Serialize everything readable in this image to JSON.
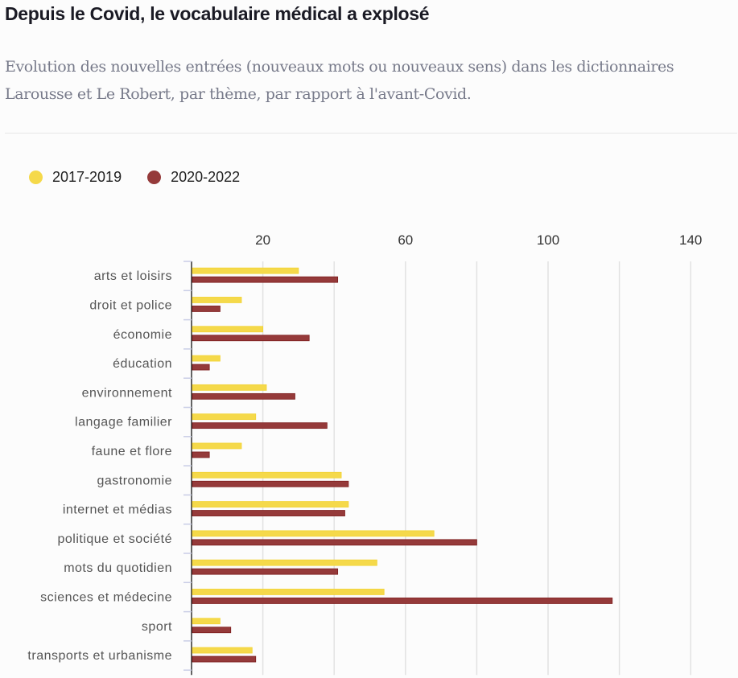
{
  "header": {
    "title": "Depuis le Covid, le vocabulaire médical a explosé",
    "subtitle": "Evolution des nouvelles entrées (nouveaux mots ou nouveaux sens) dans les dictionnaires Larousse et Le Robert, par thème, par rapport à l'avant-Covid."
  },
  "colors": {
    "series_2017": "#f5d94a",
    "series_2020": "#953a3a"
  },
  "chart_data": {
    "type": "bar",
    "orientation": "horizontal",
    "title": "Depuis le Covid, le vocabulaire médical a explosé",
    "xlabel": "",
    "ylabel": "",
    "xlim": [
      0,
      150
    ],
    "x_ticks": [
      20,
      40,
      60,
      80,
      100,
      120,
      140
    ],
    "x_tick_labels": [
      "20",
      "60",
      "100",
      "140"
    ],
    "grid": true,
    "legend_position": "top-left",
    "categories": [
      "arts et loisirs",
      "droit et police",
      "économie",
      "éducation",
      "environnement",
      "langage familier",
      "faune et flore",
      "gastronomie",
      "internet et médias",
      "politique et société",
      "mots du quotidien",
      "sciences et médecine",
      "sport",
      "transports et urbanisme"
    ],
    "series": [
      {
        "name": "2017-2019",
        "color": "#f5d94a",
        "values": [
          30,
          14,
          20,
          8,
          21,
          18,
          14,
          42,
          44,
          68,
          52,
          54,
          8,
          17
        ]
      },
      {
        "name": "2020-2022",
        "color": "#953a3a",
        "values": [
          41,
          8,
          33,
          5,
          29,
          38,
          5,
          44,
          43,
          80,
          41,
          118,
          11,
          18
        ]
      }
    ]
  }
}
